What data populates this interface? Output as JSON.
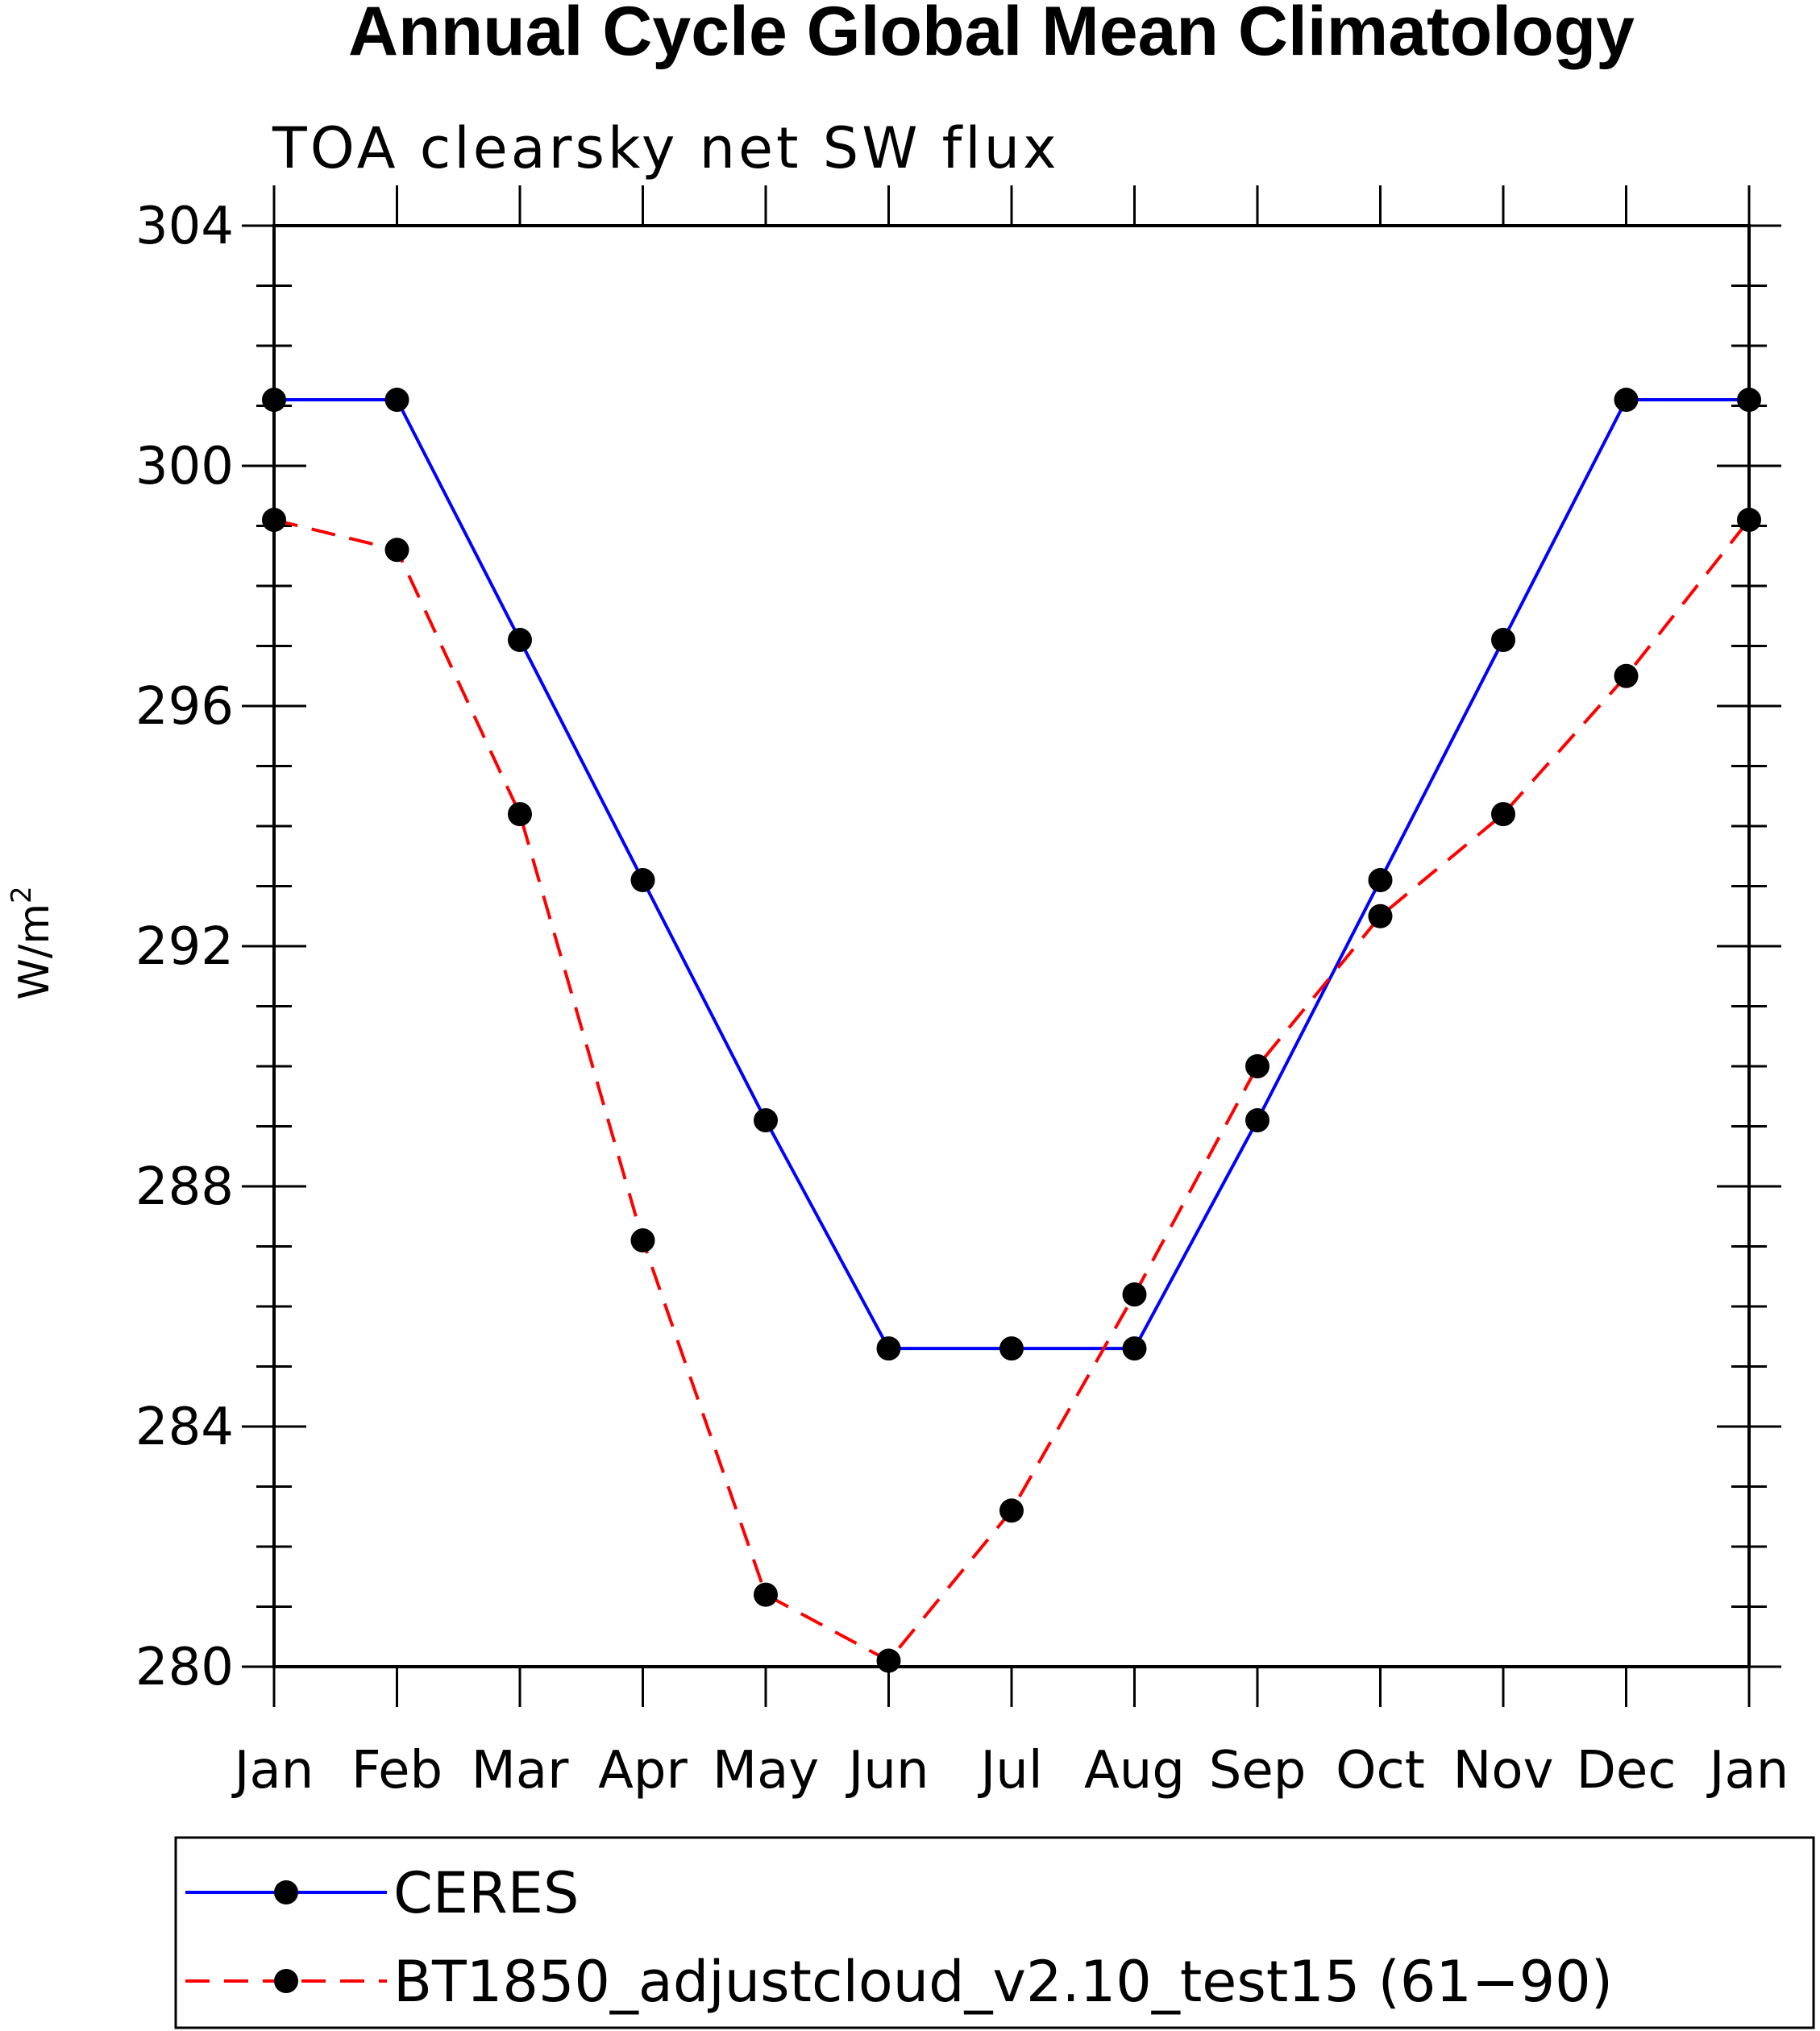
{
  "chart_data": {
    "type": "line",
    "title": "Annual Cycle Global Mean Climatology",
    "subtitle": "TOA clearsky net SW flux",
    "ylabel": "W/m",
    "ylabel_superscript": "2",
    "ylim": [
      280,
      304
    ],
    "yticks": [
      "280",
      "284",
      "288",
      "292",
      "296",
      "300",
      "304"
    ],
    "categories": [
      "Jan",
      "Feb",
      "Mar",
      "Apr",
      "May",
      "Jun",
      "Jul",
      "Aug",
      "Sep",
      "Oct",
      "Nov",
      "Dec",
      "Jan"
    ],
    "series": [
      {
        "name": "CERES",
        "color": "#0000ff",
        "line_style": "solid",
        "marker": "filled-circle",
        "values": [
          301.1,
          301.1,
          297.1,
          293.1,
          289.1,
          285.3,
          285.3,
          285.3,
          289.1,
          293.1,
          297.1,
          301.1,
          301.1
        ]
      },
      {
        "name": "BT1850_adjustcloud_v2.10_test15 (61−90)",
        "color": "#ff0000",
        "line_style": "dashed",
        "marker": "filled-circle",
        "values": [
          299.1,
          298.6,
          294.2,
          287.1,
          281.2,
          280.1,
          282.6,
          286.2,
          290.0,
          292.5,
          294.2,
          296.5,
          299.1
        ]
      }
    ],
    "grid": false,
    "legend_position": "bottom"
  }
}
